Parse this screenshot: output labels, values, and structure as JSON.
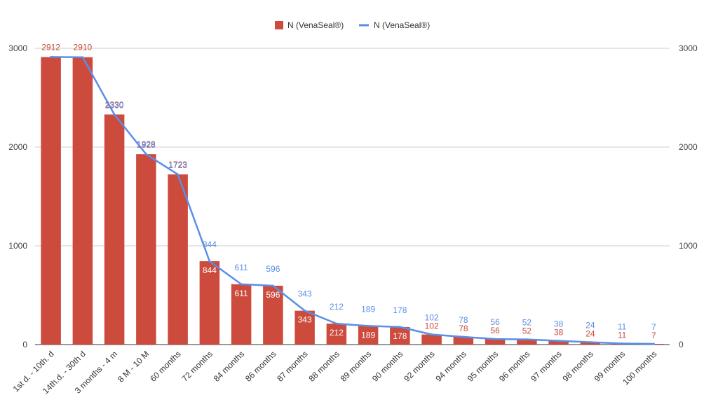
{
  "chart_data": {
    "type": "bar",
    "categories": [
      "1st d. - 10th. d",
      "14th.d. - 30th d",
      "3 months - 4 m",
      "8 M - 10 M",
      "60 months",
      "72 months",
      "84 months",
      "86 months",
      "87 months",
      "88 months",
      "89 months",
      "90 months",
      "92 months",
      "94 months",
      "95 months",
      "96 months",
      "97 months",
      "98 months",
      "99 months",
      "100 months"
    ],
    "series": [
      {
        "name": "N (VenaSeal®)",
        "kind": "bar",
        "color": "#cc4b3d",
        "values": [
          2912,
          2910,
          2330,
          1928,
          1723,
          844,
          611,
          596,
          343,
          212,
          189,
          178,
          102,
          78,
          56,
          52,
          38,
          24,
          11,
          7
        ]
      },
      {
        "name": "N (VenaSeal®)",
        "kind": "line",
        "color": "#5b8ee6",
        "values": [
          2912,
          2910,
          2330,
          1928,
          1723,
          844,
          611,
          596,
          343,
          212,
          189,
          178,
          102,
          78,
          56,
          52,
          38,
          24,
          11,
          7
        ]
      }
    ],
    "y_left_ticks": [
      "0",
      "1000",
      "2000",
      "3000"
    ],
    "y_right_ticks": [
      "0",
      "1000",
      "2000",
      "3000"
    ],
    "ylim": [
      0,
      3000
    ],
    "grid": true,
    "legend_position": "top-center",
    "title": "",
    "xlabel": "",
    "ylabel": ""
  }
}
